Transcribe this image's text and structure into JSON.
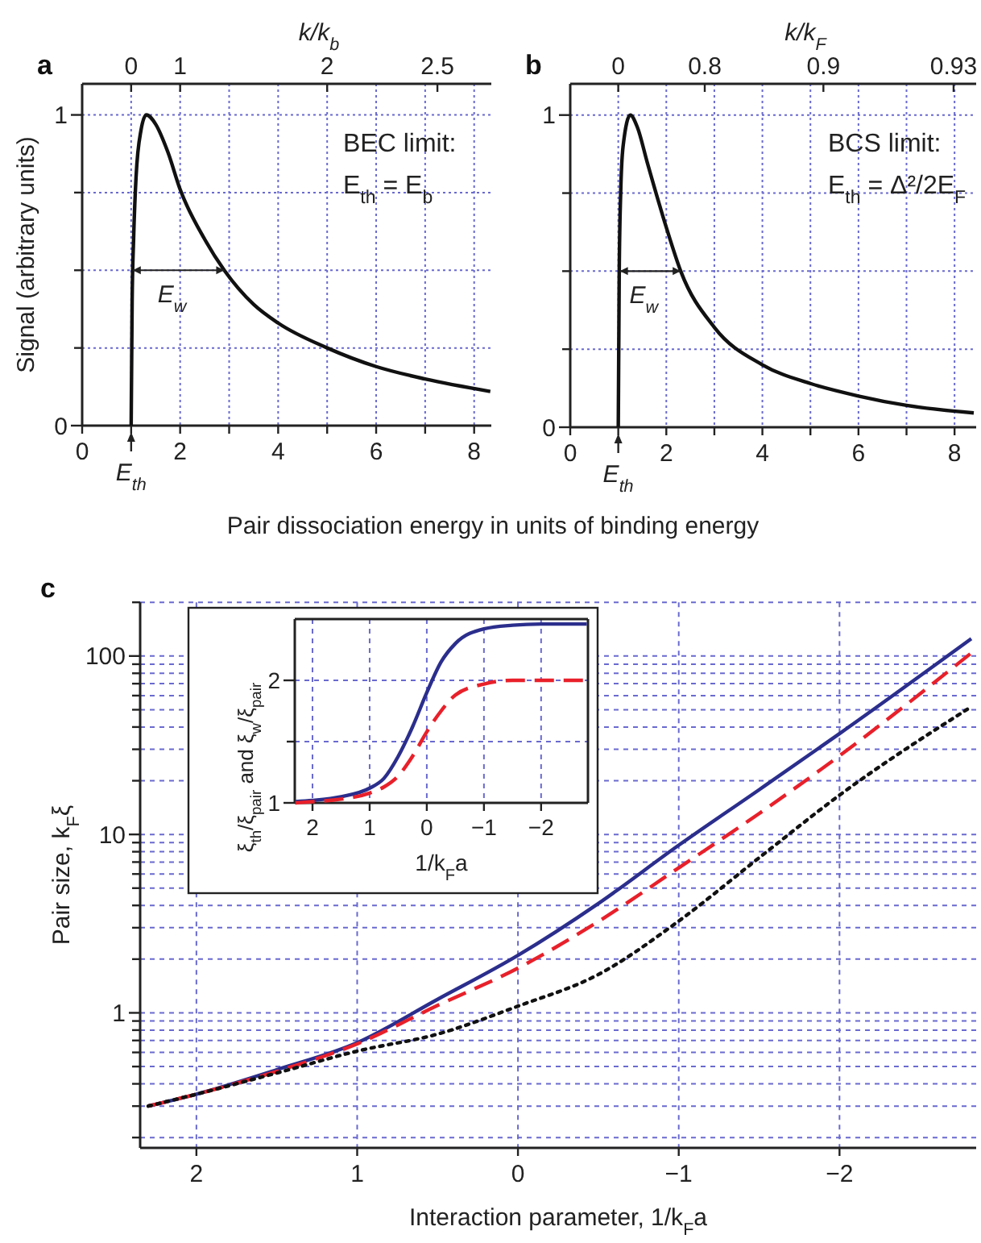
{
  "chart_data": [
    {
      "type": "line",
      "title": "a",
      "xlabel": "Pair dissociation energy in units of binding energy",
      "ylabel": "Signal (arbitrary units)",
      "x2label": "k/k$_{b}$",
      "x": [
        1,
        1.02,
        1.05,
        1.1,
        1.2,
        1.31,
        1.5,
        1.75,
        2,
        2.5,
        2.9,
        3.5,
        4,
        5,
        6,
        7,
        8.33
      ],
      "series": [
        {
          "color": "#111111",
          "line_style": "solid",
          "values": [
            0,
            0.4,
            0.6,
            0.8,
            0.95,
            1.0,
            0.97,
            0.88,
            0.76,
            0.6,
            0.5,
            0.39,
            0.33,
            0.25,
            0.19,
            0.15,
            0.11
          ]
        }
      ],
      "xlim": [
        0,
        8.35
      ],
      "xticks": [
        0,
        {
          "value": 1,
          "label": null
        },
        2,
        {
          "value": 3,
          "label": null
        },
        4,
        {
          "value": 5,
          "label": null
        },
        6,
        {
          "value": 7,
          "label": null
        },
        8
      ],
      "ylim": [
        0,
        1.1
      ],
      "yticks": [
        0,
        {
          "value": 0.25,
          "label": null
        },
        {
          "value": 0.5,
          "label": null
        },
        {
          "value": 0.75,
          "label": null
        },
        1
      ],
      "grid": true,
      "annotations": [
        "BEC limit:",
        "E$_{th}$ = E$_{b}$",
        {
          "text": "E$_{w}$",
          "x": 2.9,
          "y": 0.5
        },
        {
          "text": "E$_{th}$",
          "x": 1,
          "y": 0
        },
        "0",
        "1",
        "2",
        "2.5"
      ]
    },
    {
      "type": "line",
      "title": "b",
      "x2label": "k/k$_{F}$",
      "x": [
        1,
        1.02,
        1.05,
        1.1,
        1.25,
        1.4,
        1.6,
        2,
        2.3,
        3,
        4,
        5,
        6,
        7,
        8.4
      ],
      "series": [
        {
          "color": "#111111",
          "line_style": "solid",
          "values": [
            0,
            0.5,
            0.75,
            0.9,
            1.0,
            0.96,
            0.85,
            0.64,
            0.5,
            0.32,
            0.2,
            0.14,
            0.1,
            0.07,
            0.046
          ]
        }
      ],
      "xlim": [
        0,
        8.45
      ],
      "xticks": [
        0,
        {
          "value": 1,
          "label": null
        },
        2,
        {
          "value": 3,
          "label": null
        },
        4,
        {
          "value": 5,
          "label": null
        },
        6,
        {
          "value": 7,
          "label": null
        },
        8
      ],
      "ylim": [
        0,
        1.1
      ],
      "yticks": [
        0,
        {
          "value": 0.25,
          "label": null
        },
        {
          "value": 0.5,
          "label": null
        },
        {
          "value": 0.75,
          "label": null
        },
        1
      ],
      "grid": true,
      "annotations": [
        "BCS limit:",
        "E$_{th}$ = Δ²/2E$_{F}$",
        {
          "text": "E$_{w}$",
          "x": 2.3,
          "y": 0.5
        },
        {
          "text": "E$_{th}$",
          "x": 1,
          "y": 0
        },
        "0",
        "0.8",
        "0.9",
        "0.93"
      ]
    },
    {
      "type": "line",
      "title": "c",
      "xlabel": "Interaction parameter, 1/k$_{F}$a",
      "ylabel": "Pair size, k$_{F}$ξ",
      "log": true,
      "x": [
        2.3,
        2,
        1.5,
        1,
        0.5,
        0,
        -0.5,
        -1,
        -1.5,
        -2,
        -2.82
      ],
      "series": [
        {
          "color": "#2b2e8c",
          "line_style": "solid",
          "values": [
            0.3,
            0.35,
            0.48,
            0.68,
            1.19,
            2.1,
            4.1,
            8.7,
            17.8,
            36.7,
            125
          ]
        },
        {
          "color": "#e8202a",
          "line_style": "dashed",
          "values": [
            0.3,
            0.35,
            0.47,
            0.67,
            1.1,
            1.78,
            3.25,
            6.5,
            13.1,
            27.6,
            104
          ]
        },
        {
          "color": "#111111",
          "line_style": "dotted",
          "values": [
            0.3,
            0.35,
            0.46,
            0.61,
            0.76,
            1.09,
            1.64,
            3.27,
            7.4,
            16.6,
            52
          ]
        }
      ],
      "xlim": [
        2.35,
        -2.85
      ],
      "xticks": [
        2,
        1,
        0,
        {
          "value": -1,
          "label": "−1"
        },
        {
          "value": -2,
          "label": "−2"
        }
      ],
      "ylim": [
        0.175,
        200
      ],
      "yticks": [
        {
          "value": 0.2,
          "label": null
        },
        {
          "value": 0.3,
          "label": null
        },
        {
          "value": 0.4,
          "label": null
        },
        {
          "value": 0.5,
          "label": null
        },
        {
          "value": 0.6,
          "label": null
        },
        {
          "value": 0.7,
          "label": null
        },
        {
          "value": 0.8,
          "label": null
        },
        {
          "value": 0.9,
          "label": null
        },
        1,
        {
          "value": 2,
          "label": null
        },
        {
          "value": 3,
          "label": null
        },
        {
          "value": 4,
          "label": null
        },
        {
          "value": 5,
          "label": null
        },
        {
          "value": 6,
          "label": null
        },
        {
          "value": 7,
          "label": null
        },
        {
          "value": 8,
          "label": null
        },
        {
          "value": 9,
          "label": null
        },
        10,
        {
          "value": 20,
          "label": null
        },
        {
          "value": 30,
          "label": null
        },
        {
          "value": 40,
          "label": null
        },
        {
          "value": 50,
          "label": null
        },
        {
          "value": 60,
          "label": null
        },
        {
          "value": 70,
          "label": null
        },
        {
          "value": 80,
          "label": null
        },
        {
          "value": 90,
          "label": null
        },
        100,
        {
          "value": 200,
          "label": null
        }
      ],
      "grid": true
    },
    {
      "type": "line",
      "xlabel": "1/k$_{F}$a",
      "ylabel": "ξ$_{th}$/ξ$_{pair}$ and ξ$_{w}$/ξ$_{pair}$",
      "x": [
        2.3,
        2,
        1.5,
        1,
        0.75,
        0.5,
        0.25,
        0,
        -0.25,
        -0.5,
        -1,
        -1.5,
        -2,
        -2.8
      ],
      "series": [
        {
          "color": "#2b2e8c",
          "line_style": "solid",
          "values": [
            1.01,
            1.02,
            1.05,
            1.12,
            1.2,
            1.38,
            1.62,
            1.9,
            2.15,
            2.3,
            2.42,
            2.45,
            2.46,
            2.46
          ]
        },
        {
          "color": "#e8202a",
          "line_style": "dashed",
          "values": [
            1.0,
            1.01,
            1.03,
            1.08,
            1.13,
            1.22,
            1.38,
            1.58,
            1.75,
            1.88,
            1.97,
            2.0,
            2.0,
            2.0
          ]
        }
      ],
      "xlim": [
        2.31,
        -2.82
      ],
      "xticks": [
        2,
        1,
        0,
        {
          "value": -1,
          "label": "−1"
        },
        {
          "value": -2,
          "label": "−2"
        }
      ],
      "ylim": [
        1,
        2.5
      ],
      "yticks": [
        1,
        {
          "value": 1.5,
          "label": null
        },
        2
      ],
      "grid": true
    }
  ]
}
